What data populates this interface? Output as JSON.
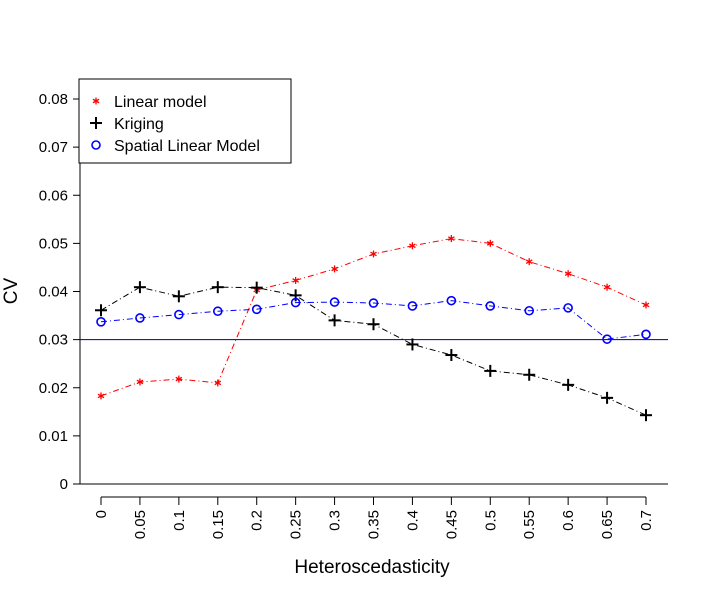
{
  "chart_data": {
    "type": "line",
    "title": "",
    "xlabel": "Heteroscedasticity",
    "ylabel": "CV",
    "x": [
      0,
      0.05,
      0.1,
      0.15,
      0.2,
      0.25,
      0.3,
      0.35,
      0.4,
      0.45,
      0.5,
      0.55,
      0.6,
      0.65,
      0.7
    ],
    "x_tick_labels": [
      "0",
      "0.05",
      "0.1",
      "0.15",
      "0.2",
      "0.25",
      "0.3",
      "0.35",
      "0.4",
      "0.45",
      "0.5",
      "0.55",
      "0.6",
      "0.65",
      "0.7"
    ],
    "y_ticks": [
      0,
      0.01,
      0.02,
      0.03,
      0.04,
      0.05,
      0.06,
      0.07,
      0.08
    ],
    "y_tick_labels": [
      "0",
      "0.01",
      "0.02",
      "0.03",
      "0.04",
      "0.05",
      "0.06",
      "0.07",
      "0.08"
    ],
    "ylim": [
      0,
      0.08
    ],
    "xlim": [
      0,
      0.7
    ],
    "grid": false,
    "legend_position": "top-left",
    "reference_line": {
      "y": 0.03,
      "color": "#000080"
    },
    "series": [
      {
        "name": "Linear model",
        "color": "#ff0000",
        "marker": "asterisk",
        "marker_glyph": "*",
        "line_style": "dash-dot",
        "values": [
          0.0183,
          0.0212,
          0.0218,
          0.021,
          0.0403,
          0.0423,
          0.0447,
          0.0478,
          0.0495,
          0.051,
          0.05,
          0.0462,
          0.0437,
          0.0409,
          0.0372
        ]
      },
      {
        "name": "Kriging",
        "color": "#000000",
        "marker": "plus",
        "marker_glyph": "+",
        "line_style": "dash-dot",
        "values": [
          0.0361,
          0.0409,
          0.039,
          0.0409,
          0.0408,
          0.0392,
          0.034,
          0.0332,
          0.029,
          0.0268,
          0.0235,
          0.0227,
          0.0206,
          0.0179,
          0.0143
        ]
      },
      {
        "name": "Spatial Linear Model",
        "color": "#0000ff",
        "marker": "circle",
        "marker_glyph": "o",
        "line_style": "dash-dot",
        "values": [
          0.0337,
          0.0345,
          0.0352,
          0.0359,
          0.0363,
          0.0377,
          0.0378,
          0.0376,
          0.037,
          0.0381,
          0.037,
          0.036,
          0.0366,
          0.0301,
          0.0311
        ]
      }
    ]
  }
}
